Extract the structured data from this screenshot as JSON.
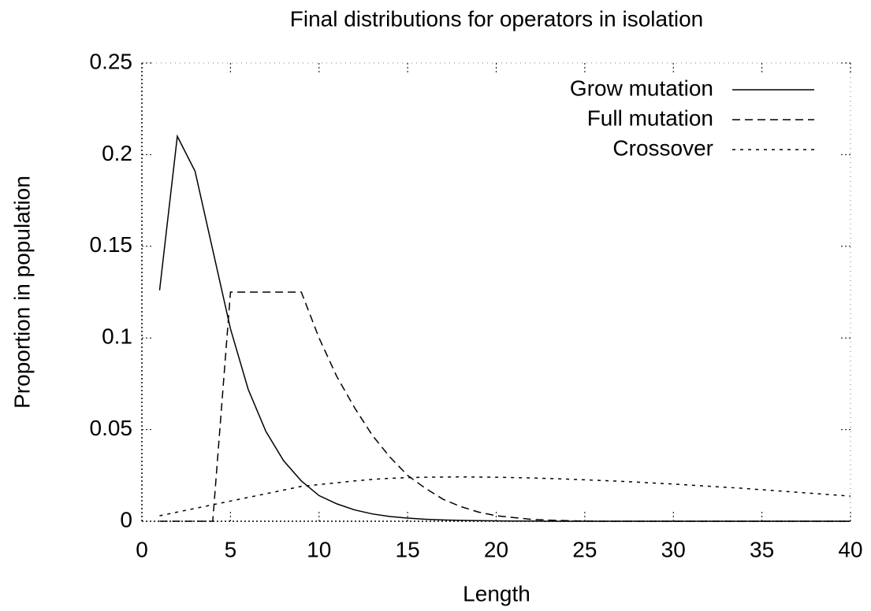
{
  "chart_data": {
    "type": "line",
    "title": "Final distributions for operators in isolation",
    "xlabel": "Length",
    "ylabel": "Proportion in population",
    "x": [
      1,
      2,
      3,
      4,
      5,
      6,
      7,
      8,
      9,
      10,
      11,
      12,
      13,
      14,
      15,
      16,
      17,
      18,
      19,
      20,
      21,
      22,
      23,
      24,
      25,
      26,
      27,
      28,
      29,
      30,
      31,
      32,
      33,
      34,
      35,
      36,
      37,
      38,
      39,
      40
    ],
    "series": [
      {
        "name": "Grow mutation",
        "color": "#000000",
        "dash": "solid",
        "values": [
          0.126,
          0.21,
          0.191,
          0.148,
          0.105,
          0.072,
          0.049,
          0.033,
          0.022,
          0.014,
          0.0095,
          0.0062,
          0.004,
          0.0026,
          0.0017,
          0.0011,
          0.0007,
          0.0005,
          0.0003,
          0.0002,
          0.0001,
          0.0001,
          0,
          0,
          0,
          0,
          0,
          0,
          0,
          0,
          0,
          0,
          0,
          0,
          0,
          0,
          0,
          0,
          0,
          0
        ]
      },
      {
        "name": "Full mutation",
        "color": "#000000",
        "dash": "dashed",
        "values": [
          0,
          0,
          0,
          0,
          0.125,
          0.125,
          0.125,
          0.125,
          0.125,
          0.1,
          0.079,
          0.062,
          0.047,
          0.035,
          0.025,
          0.018,
          0.012,
          0.008,
          0.005,
          0.003,
          0.002,
          0.001,
          0.0006,
          0.0003,
          0.0001,
          0,
          0,
          0,
          0,
          0,
          0,
          0,
          0,
          0,
          0,
          0,
          0,
          0,
          0,
          0
        ]
      },
      {
        "name": "Crossover",
        "color": "#000000",
        "dash": "dotted",
        "values": [
          0.003,
          0.005,
          0.007,
          0.009,
          0.011,
          0.013,
          0.015,
          0.017,
          0.019,
          0.02,
          0.021,
          0.022,
          0.0228,
          0.0234,
          0.0238,
          0.024,
          0.0241,
          0.0242,
          0.0241,
          0.024,
          0.0238,
          0.0236,
          0.0233,
          0.023,
          0.0226,
          0.0222,
          0.0218,
          0.0213,
          0.0208,
          0.0203,
          0.0197,
          0.0191,
          0.0185,
          0.0179,
          0.0172,
          0.0165,
          0.0158,
          0.0151,
          0.0144,
          0.0137
        ]
      }
    ],
    "xlim": [
      0,
      40
    ],
    "xticks": [
      0,
      5,
      10,
      15,
      20,
      25,
      30,
      35,
      40
    ],
    "ylim": [
      0,
      0.25
    ],
    "yticks": [
      0,
      0.05,
      0.1,
      0.15,
      0.2,
      0.25
    ],
    "legend": "top-right"
  }
}
